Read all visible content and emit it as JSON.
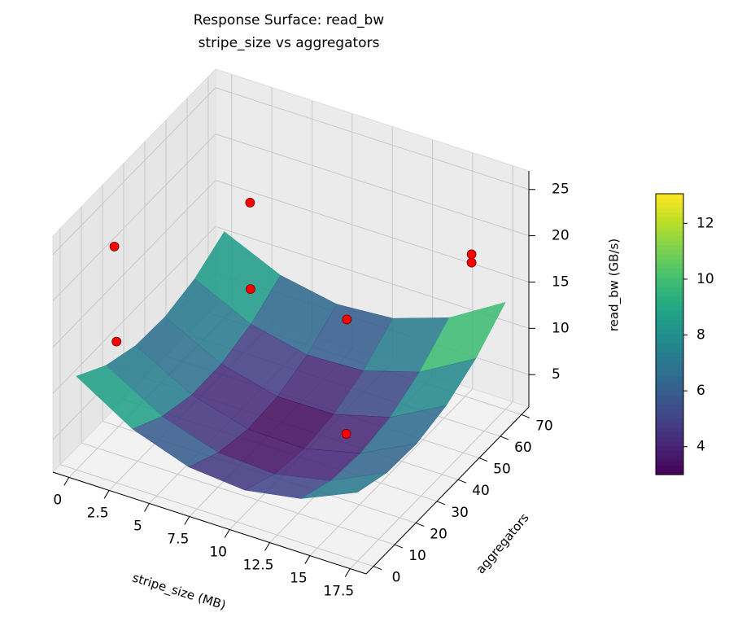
{
  "chart_data": {
    "type": "surface3d",
    "title": "Response Surface: read_bw",
    "subtitle": "stripe_size vs aggregators",
    "x_label": "stripe_size (MB)",
    "y_label": "aggregators",
    "z_label": "read_bw (GB/s)",
    "xlim": [
      -1,
      18.5
    ],
    "ylim": [
      -3.5,
      73.5
    ],
    "zlim": [
      1.5,
      27
    ],
    "xticks": [
      0.0,
      2.5,
      5.0,
      7.5,
      10.0,
      12.5,
      15.0,
      17.5
    ],
    "yticks": [
      0,
      10,
      20,
      30,
      40,
      50,
      60,
      70
    ],
    "zticks": [
      5,
      10,
      15,
      20,
      25
    ],
    "colormap": "viridis",
    "clim": [
      3,
      13.06
    ],
    "colorbar_ticks": [
      4,
      6,
      8,
      10,
      12
    ],
    "surface": {
      "x": [
        0,
        3.5,
        7,
        10.5,
        14,
        17.5
      ],
      "y": [
        0,
        14,
        28,
        42,
        56,
        70
      ],
      "z": [
        [
          11.6,
          7.88,
          5.75,
          5.22,
          6.28,
          8.93
        ],
        [
          9.49,
          5.96,
          4.03,
          3.69,
          4.95,
          7.8
        ],
        [
          8.35,
          5.02,
          3.29,
          3.15,
          4.63,
          7.64
        ],
        [
          8.2,
          5.07,
          3.52,
          3.58,
          5.23,
          8.47
        ],
        [
          9.02,
          6.09,
          4.74,
          5.0,
          6.84,
          10.27
        ],
        [
          10.83,
          8.09,
          6.94,
          7.39,
          9.43,
          13.06
        ]
      ]
    },
    "points": {
      "color": "#ff0000",
      "x": [
        0,
        0,
        2,
        4,
        10,
        12,
        17.5,
        17.5
      ],
      "y": [
        18,
        19,
        67,
        52,
        52,
        36.5,
        54,
        54
      ],
      "z": [
        21.4,
        10.9,
        15.8,
        11.1,
        11.2,
        3.6,
        22,
        21.1
      ]
    }
  }
}
